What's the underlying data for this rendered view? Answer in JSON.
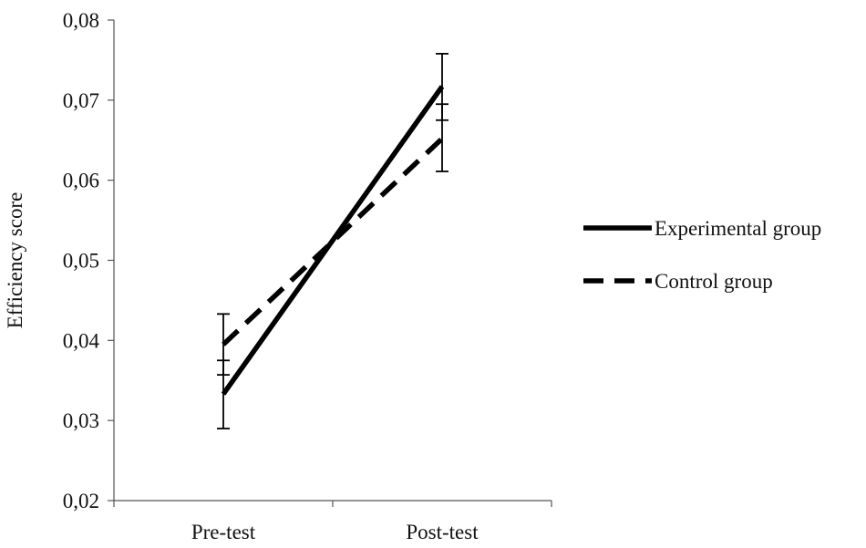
{
  "chart_data": {
    "type": "line",
    "xlabel": "",
    "ylabel": "Efficiency score",
    "categories": [
      "Pre-test",
      "Post-test"
    ],
    "yticks": [
      "0,02",
      "0,03",
      "0,04",
      "0,05",
      "0,06",
      "0,07",
      "0,08"
    ],
    "ylim": [
      0.02,
      0.08
    ],
    "grid": false,
    "legend_position": "right",
    "series": [
      {
        "name": "Experimental group",
        "values": [
          0.0333,
          0.0717
        ],
        "error_low": [
          0.029,
          0.0675
        ],
        "error_high": [
          0.0375,
          0.0758
        ],
        "line_style": "solid",
        "color": "#000000"
      },
      {
        "name": "Control group",
        "values": [
          0.0395,
          0.0652
        ],
        "error_low": [
          0.0357,
          0.0611
        ],
        "error_high": [
          0.0433,
          0.0695
        ],
        "line_style": "dashed",
        "color": "#000000"
      }
    ]
  }
}
